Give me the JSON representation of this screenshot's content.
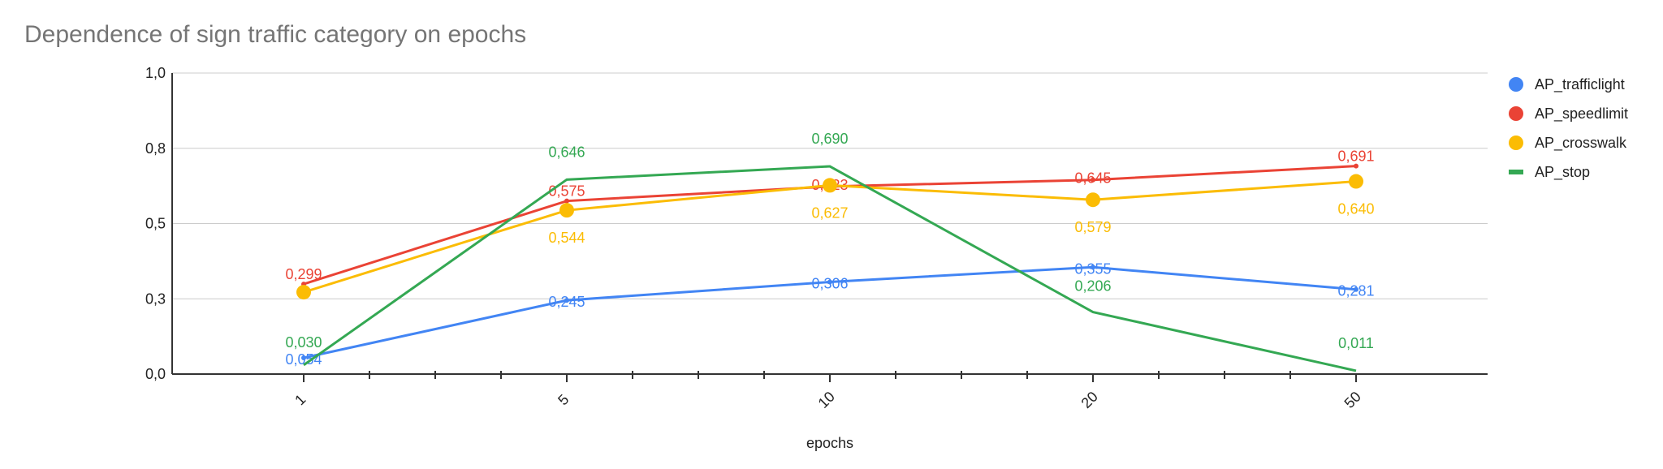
{
  "chart_data": {
    "type": "line",
    "title": "Dependence of sign traffic category on epochs",
    "xlabel": "epochs",
    "ylabel": "",
    "categories": [
      "1",
      "5",
      "10",
      "20",
      "50"
    ],
    "ylim": [
      0,
      1.0
    ],
    "yticks": [
      {
        "value": 0.0,
        "label": "0,0"
      },
      {
        "value": 0.25,
        "label": "0,3"
      },
      {
        "value": 0.5,
        "label": "0,5"
      },
      {
        "value": 0.75,
        "label": "0,8"
      },
      {
        "value": 1.0,
        "label": "1,0"
      }
    ],
    "grid": true,
    "legend_position": "right",
    "series": [
      {
        "name": "AP_trafficlight",
        "color": "#4285F4",
        "marker": "circle",
        "values": [
          0.054,
          0.245,
          0.306,
          0.355,
          0.281
        ],
        "labels": [
          "0,054",
          "0,245",
          "0,306",
          "0,355",
          "0,281"
        ]
      },
      {
        "name": "AP_speedlimit",
        "color": "#EA4335",
        "marker": "circle",
        "values": [
          0.299,
          0.575,
          0.623,
          0.645,
          0.691
        ],
        "labels": [
          "0,299",
          "0,575",
          "0,623",
          "0,645",
          "0,691"
        ]
      },
      {
        "name": "AP_crosswalk",
        "color": "#FBBC04",
        "marker": "circle",
        "values": [
          0.272,
          0.544,
          0.627,
          0.579,
          0.64
        ],
        "labels": [
          "",
          "0,544",
          "0,627",
          "0,579",
          "0,640"
        ]
      },
      {
        "name": "AP_stop",
        "color": "#34A853",
        "marker": "line",
        "values": [
          0.03,
          0.646,
          0.69,
          0.206,
          0.011
        ],
        "labels": [
          "0,030",
          "0,646",
          "0,690",
          "0,206",
          "0,011"
        ]
      }
    ]
  }
}
